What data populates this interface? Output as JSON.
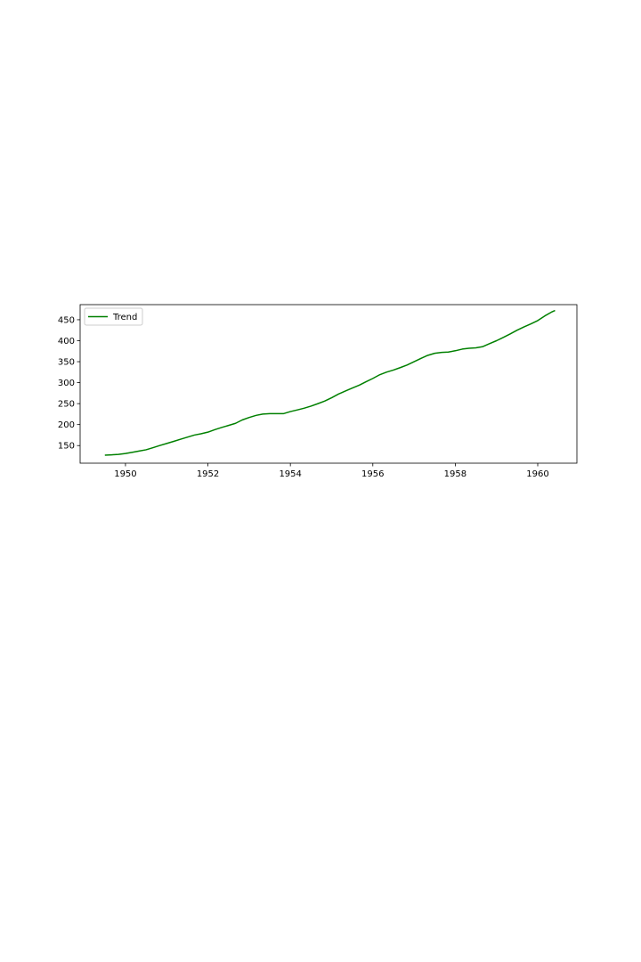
{
  "chart_data": {
    "type": "line",
    "title": "",
    "xlabel": "",
    "ylabel": "",
    "xlim": [
      1948.9,
      1960.95
    ],
    "ylim": [
      108,
      486
    ],
    "xticks": [
      1950,
      1952,
      1954,
      1956,
      1958,
      1960
    ],
    "yticks": [
      150,
      200,
      250,
      300,
      350,
      400,
      450
    ],
    "grid": false,
    "legend_position": "upper left",
    "series": [
      {
        "name": "Trend",
        "color": "#008000",
        "x": [
          1949.5,
          1949.67,
          1949.83,
          1950.0,
          1950.17,
          1950.33,
          1950.5,
          1950.67,
          1950.83,
          1951.0,
          1951.17,
          1951.33,
          1951.5,
          1951.67,
          1951.83,
          1952.0,
          1952.17,
          1952.33,
          1952.5,
          1952.67,
          1952.83,
          1953.0,
          1953.17,
          1953.33,
          1953.5,
          1953.67,
          1953.83,
          1954.0,
          1954.17,
          1954.33,
          1954.5,
          1954.67,
          1954.83,
          1955.0,
          1955.17,
          1955.33,
          1955.5,
          1955.67,
          1955.83,
          1956.0,
          1956.17,
          1956.33,
          1956.5,
          1956.67,
          1956.83,
          1957.0,
          1957.17,
          1957.33,
          1957.5,
          1957.67,
          1957.83,
          1958.0,
          1958.17,
          1958.33,
          1958.5,
          1958.67,
          1958.83,
          1959.0,
          1959.17,
          1959.33,
          1959.5,
          1959.67,
          1959.83,
          1960.0,
          1960.17,
          1960.33,
          1960.42
        ],
        "y": [
          127,
          128,
          129,
          131,
          134,
          137,
          140,
          145,
          150,
          155,
          160,
          165,
          170,
          175,
          178,
          182,
          188,
          193,
          198,
          203,
          211,
          217,
          222,
          225,
          226,
          226,
          226,
          231,
          235,
          239,
          244,
          250,
          256,
          264,
          273,
          280,
          287,
          294,
          302,
          310,
          319,
          325,
          330,
          336,
          342,
          350,
          358,
          365,
          370,
          372,
          373,
          376,
          380,
          382,
          383,
          386,
          393,
          400,
          408,
          416,
          425,
          433,
          440,
          448,
          459,
          468,
          472
        ]
      }
    ]
  }
}
